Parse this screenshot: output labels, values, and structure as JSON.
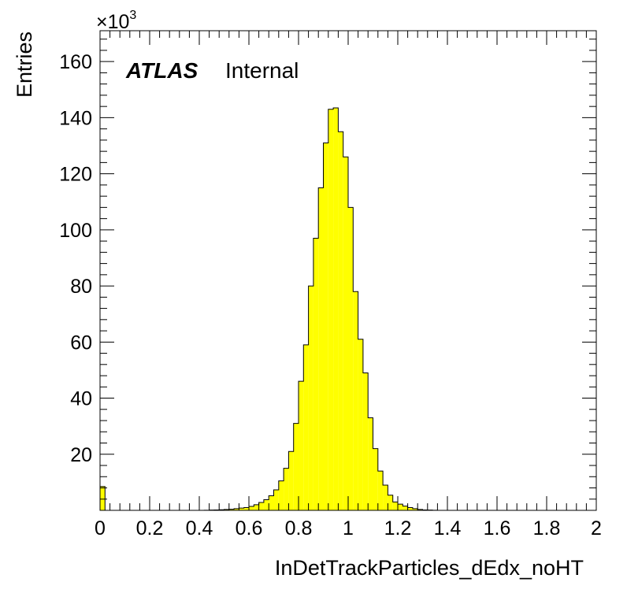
{
  "chart_data": {
    "type": "bar",
    "style": "histogram",
    "experiment_label": "ATLAS",
    "status_label": "Internal",
    "xlabel": "InDetTrackParticles_dEdx_noHT",
    "ylabel": "Entries",
    "y_multiplier": "×10",
    "y_multiplier_exponent": "3",
    "xlim": [
      0,
      2
    ],
    "ylim": [
      0,
      171
    ],
    "x_ticks": [
      0,
      0.2,
      0.4,
      0.6,
      0.8,
      1,
      1.2,
      1.4,
      1.6,
      1.8,
      2
    ],
    "x_tick_labels": [
      "0",
      "0.2",
      "0.4",
      "0.6",
      "0.8",
      "1",
      "1.2",
      "1.4",
      "1.6",
      "1.8",
      "2"
    ],
    "y_ticks": [
      20,
      40,
      60,
      80,
      100,
      120,
      140,
      160
    ],
    "y_tick_labels": [
      "20",
      "40",
      "60",
      "80",
      "100",
      "120",
      "140",
      "160"
    ],
    "fill_color": "#ffff00",
    "line_color": "#000000",
    "bin_width": 0.02,
    "bin_low_edges": [
      0.0,
      0.02,
      0.04,
      0.06,
      0.08,
      0.1,
      0.12,
      0.14,
      0.16,
      0.18,
      0.2,
      0.22,
      0.24,
      0.26,
      0.28,
      0.3,
      0.32,
      0.34,
      0.36,
      0.38,
      0.4,
      0.42,
      0.44,
      0.46,
      0.48,
      0.5,
      0.52,
      0.54,
      0.56,
      0.58,
      0.6,
      0.62,
      0.64,
      0.66,
      0.68,
      0.7,
      0.72,
      0.74,
      0.76,
      0.78,
      0.8,
      0.82,
      0.84,
      0.86,
      0.88,
      0.9,
      0.92,
      0.94,
      0.96,
      0.98,
      1.0,
      1.02,
      1.04,
      1.06,
      1.08,
      1.1,
      1.12,
      1.14,
      1.16,
      1.18,
      1.2,
      1.22,
      1.24,
      1.26,
      1.28,
      1.3,
      1.32,
      1.34,
      1.36,
      1.38,
      1.4,
      1.42,
      1.44,
      1.46,
      1.48,
      1.5,
      1.52,
      1.54,
      1.56,
      1.58,
      1.6,
      1.62,
      1.64,
      1.66,
      1.68,
      1.7,
      1.72,
      1.74,
      1.76,
      1.78,
      1.8,
      1.82,
      1.84,
      1.86,
      1.88,
      1.9,
      1.92,
      1.94,
      1.96,
      1.98
    ],
    "values": [
      8.5,
      0,
      0,
      0,
      0,
      0,
      0,
      0,
      0,
      0,
      0,
      0,
      0,
      0,
      0,
      0,
      0,
      0,
      0,
      0,
      0,
      0.05,
      0.1,
      0.15,
      0.2,
      0.3,
      0.4,
      0.6,
      0.8,
      1.0,
      1.4,
      2.0,
      2.8,
      3.8,
      5.2,
      7.3,
      10.5,
      15,
      21,
      31,
      46,
      59,
      80,
      97,
      115,
      131,
      143,
      143.5,
      135,
      126,
      108,
      78,
      61,
      49,
      33,
      22,
      14,
      9,
      5.4,
      3.0,
      2.2,
      1.5,
      1.0,
      0.6,
      0.3,
      0.15,
      0.1,
      0.05,
      0,
      0,
      0,
      0,
      0,
      0,
      0,
      0,
      0,
      0,
      0,
      0,
      0,
      0,
      0,
      0,
      0,
      0,
      0,
      0,
      0,
      0,
      0,
      0,
      0,
      0,
      0,
      0,
      0,
      0,
      0,
      0
    ]
  }
}
